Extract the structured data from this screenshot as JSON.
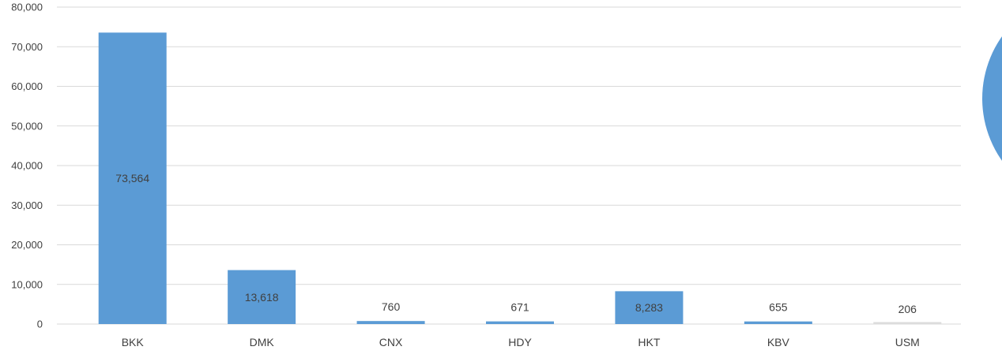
{
  "chart_data": {
    "type": "bar",
    "categories": [
      "BKK",
      "DMK",
      "CNX",
      "HDY",
      "HKT",
      "KBV",
      "USM"
    ],
    "values": [
      73564,
      13618,
      760,
      671,
      8283,
      655,
      206
    ],
    "data_labels": [
      "73,564",
      "13,618",
      "760",
      "671",
      "8,283",
      "655",
      "206"
    ],
    "y_ticks": [
      0,
      10000,
      20000,
      30000,
      40000,
      50000,
      60000,
      70000,
      80000
    ],
    "y_tick_labels": [
      "0",
      "10,000",
      "20,000",
      "30,000",
      "40,000",
      "50,000",
      "60,000",
      "70,000",
      "80,000"
    ],
    "ylim": [
      0,
      80000
    ],
    "grid": true,
    "colors": {
      "bar": "#5b9bd5",
      "bar_last": "#dcdcdc",
      "grid": "#d9d9d9",
      "text": "#404040",
      "pie_partial": "#5b9bd5"
    }
  }
}
